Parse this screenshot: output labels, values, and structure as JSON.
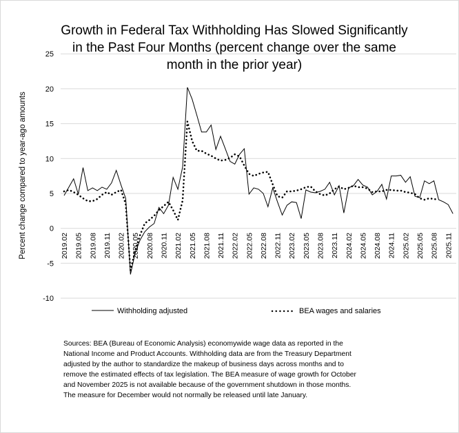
{
  "chart_data": {
    "type": "line",
    "title_lines": [
      "Growth in Federal Tax Withholding Has Slowed Significantly",
      "in the Past Four Months (percent change over the same",
      "month in the prior year)"
    ],
    "ylabel": "Percent change compared to year-ago amounts",
    "xlabel": "",
    "ylim": [
      -10,
      25
    ],
    "yticks": [
      25,
      20,
      15,
      10,
      5,
      0,
      -5,
      -10
    ],
    "grid": true,
    "x": [
      "2019.02",
      "2019.03",
      "2019.04",
      "2019.05",
      "2019.06",
      "2019.07",
      "2019.08",
      "2019.09",
      "2019.10",
      "2019.11",
      "2019.12",
      "2020.01",
      "2020.02",
      "2020.03",
      "2020.04",
      "2020.05",
      "2020.06",
      "2020.07",
      "2020.08",
      "2020.09",
      "2020.10",
      "2020.11",
      "2020.12",
      "2021.01",
      "2021.02",
      "2021.03",
      "2021.04",
      "2021.05",
      "2021.06",
      "2021.07",
      "2021.08",
      "2021.09",
      "2021.10",
      "2021.11",
      "2021.12",
      "2022.01",
      "2022.02",
      "2022.03",
      "2022.04",
      "2022.05",
      "2022.06",
      "2022.07",
      "2022.08",
      "2022.09",
      "2022.10",
      "2022.11",
      "2022.12",
      "2023.01",
      "2023.02",
      "2023.03",
      "2023.04",
      "2023.05",
      "2023.06",
      "2023.07",
      "2023.08",
      "2023.09",
      "2023.10",
      "2023.11",
      "2023.12",
      "2024.01",
      "2024.02",
      "2024.03",
      "2024.04",
      "2024.05",
      "2024.06",
      "2024.07",
      "2024.08",
      "2024.09",
      "2024.10",
      "2024.11",
      "2024.12",
      "2025.01",
      "2025.02",
      "2025.03",
      "2025.04",
      "2025.05",
      "2025.06",
      "2025.07",
      "2025.08",
      "2025.09",
      "2025.10",
      "2025.11",
      "2025.12"
    ],
    "xtick_labels": [
      "2019.02",
      "2019.05",
      "2019.08",
      "2019.11",
      "2020.02",
      "2020.05",
      "2020.08",
      "2020.11",
      "2021.02",
      "2021.05",
      "2021.08",
      "2021.11",
      "2022.02",
      "2022.05",
      "2022.08",
      "2022.11",
      "2023.02",
      "2023.05",
      "2023.08",
      "2023.11",
      "2024.02",
      "2024.05",
      "2024.08",
      "2024.11",
      "2025.02",
      "2025.05",
      "2025.08",
      "2025.11"
    ],
    "series": [
      {
        "name": "Withholding adjusted",
        "style": "solid",
        "color": "#000000",
        "values": [
          4.7,
          5.9,
          7.1,
          4.9,
          8.7,
          5.4,
          5.8,
          5.4,
          5.9,
          5.6,
          6.5,
          8.3,
          6.2,
          4.3,
          -6.6,
          -3.5,
          -1.7,
          -0.5,
          0.2,
          0.7,
          3.0,
          2.1,
          3.3,
          7.3,
          5.6,
          8.8,
          20.2,
          18.5,
          16.2,
          13.8,
          13.8,
          14.8,
          11.3,
          13.2,
          11.4,
          9.6,
          9.2,
          10.6,
          11.4,
          4.9,
          5.8,
          5.6,
          5.0,
          3.1,
          5.8,
          3.8,
          1.9,
          3.3,
          3.8,
          3.7,
          1.4,
          5.5,
          5.2,
          5.1,
          5.3,
          5.6,
          6.6,
          4.8,
          6.1,
          2.2,
          5.8,
          6.1,
          7.0,
          6.2,
          5.9,
          4.8,
          5.3,
          6.3,
          4.2,
          7.5,
          7.5,
          7.6,
          6.6,
          7.4,
          4.6,
          4.4,
          6.8,
          6.4,
          6.8,
          4.1,
          3.8,
          3.4,
          2.1
        ]
      },
      {
        "name": "BEA wages and salaries",
        "style": "dotted",
        "color": "#000000",
        "values": [
          5.3,
          5.5,
          5.2,
          4.8,
          4.3,
          3.9,
          3.9,
          4.2,
          4.8,
          5.2,
          4.8,
          5.2,
          5.5,
          3.5,
          -6.0,
          -3.2,
          -1.0,
          0.7,
          1.2,
          1.8,
          2.6,
          3.2,
          3.8,
          2.6,
          1.2,
          4.0,
          15.3,
          12.5,
          11.1,
          11.1,
          10.7,
          10.4,
          10.0,
          9.7,
          9.8,
          10.1,
          10.6,
          10.3,
          9.0,
          7.8,
          7.5,
          7.8,
          8.0,
          8.1,
          6.3,
          4.6,
          4.4,
          5.3,
          5.3,
          5.4,
          5.6,
          5.9,
          6.0,
          5.3,
          4.9,
          4.7,
          5.0,
          5.6,
          6.0,
          5.6,
          5.8,
          6.1,
          5.9,
          5.9,
          5.7,
          5.2,
          5.3,
          5.3,
          5.5,
          5.5,
          5.4,
          5.4,
          5.2,
          5.1,
          4.9,
          4.3,
          4.1,
          4.3,
          4.2,
          4.1,
          null,
          null,
          null
        ]
      }
    ],
    "legend": [
      "Withholding adjusted",
      "BEA wages and salaries"
    ],
    "legend_position": "bottom"
  },
  "sources_text": "Sources:  BEA (Bureau of Economic Analysis) economywide wage data as reported in the National Income and Product Accounts. Withholding data are from the Treasury Department adjusted by the author to standardize the makeup of business days across months and to remove the estimated effects of tax legislation. The BEA measure of wage growth for October and November 2025 is not available because of the government shutdown in those months. The measure for December would not normally be released until late January.",
  "colors": {
    "gridline": "#d9d9d9",
    "border": "#d9d9d9",
    "series": "#000000"
  }
}
